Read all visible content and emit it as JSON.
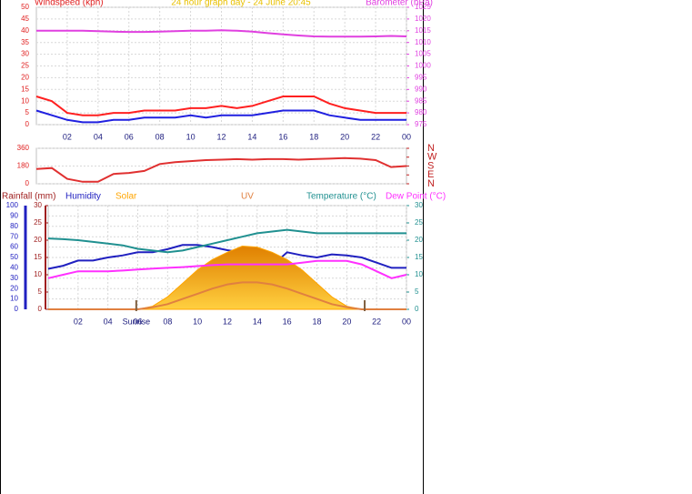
{
  "chart_data": [
    {
      "type": "line",
      "title": "24 hour graph day - 24 June 20:45",
      "ylabel": "Windspeed (kph)",
      "y2label": "Barometer (hPa)",
      "x": [
        0,
        1,
        2,
        3,
        4,
        5,
        6,
        7,
        8,
        9,
        10,
        11,
        12,
        13,
        14,
        15,
        16,
        17,
        18,
        19,
        20,
        21,
        22,
        23,
        24
      ],
      "xlim": [
        0,
        24
      ],
      "xticks": [
        {
          "value": 2,
          "label": "02"
        },
        {
          "value": 4,
          "label": "04"
        },
        {
          "value": 6,
          "label": "06"
        },
        {
          "value": 8,
          "label": "08"
        },
        10,
        12,
        14,
        16,
        18,
        20,
        22,
        {
          "value": 24,
          "label": "00"
        }
      ],
      "ylim": [
        0,
        50
      ],
      "yticks": [
        0,
        5,
        10,
        15,
        20,
        25,
        30,
        35,
        40,
        45,
        50
      ],
      "y2lim": [
        975,
        1025
      ],
      "y2ticks": [
        975,
        980,
        985,
        990,
        995,
        1000,
        1005,
        1010,
        1015,
        1020,
        1025
      ],
      "grid": true,
      "series": [
        {
          "color": "#ff2020",
          "values": [
            12,
            10,
            5,
            4,
            4,
            5,
            5,
            6,
            6,
            6,
            7,
            7,
            8,
            7,
            8,
            10,
            12,
            12,
            12,
            9,
            7,
            6,
            5,
            5,
            5
          ]
        },
        {
          "color": "#2020e0",
          "values": [
            6,
            4,
            2,
            1,
            1,
            2,
            2,
            3,
            3,
            3,
            4,
            3,
            4,
            4,
            4,
            5,
            6,
            6,
            6,
            4,
            3,
            2,
            2,
            2,
            2
          ]
        },
        {
          "color": "#e040e0",
          "axis": "y2",
          "values": [
            1015,
            1015,
            1015,
            1015,
            1014.8,
            1014.6,
            1014.5,
            1014.5,
            1014.6,
            1014.8,
            1015,
            1015,
            1015.2,
            1015,
            1014.6,
            1014,
            1013.5,
            1013,
            1012.6,
            1012.5,
            1012.5,
            1012.5,
            1012.6,
            1012.8,
            1012.6
          ]
        }
      ]
    },
    {
      "type": "line",
      "x": [
        0,
        1,
        2,
        3,
        4,
        5,
        6,
        7,
        8,
        9,
        10,
        11,
        12,
        13,
        14,
        15,
        16,
        17,
        18,
        19,
        20,
        21,
        22,
        23,
        24
      ],
      "xlim": [
        0,
        24
      ],
      "ylim": [
        0,
        360
      ],
      "yticks": [
        0,
        180,
        360
      ],
      "y2lim": [
        0,
        360
      ],
      "y2ticks": [
        {
          "value": 360,
          "label": "N"
        },
        {
          "value": 270,
          "label": "W"
        },
        {
          "value": 180,
          "label": "S"
        },
        {
          "value": 90,
          "label": "E"
        },
        {
          "value": 0,
          "label": "N"
        }
      ],
      "grid": true,
      "series": [
        {
          "color": "#e03030",
          "values": [
            150,
            160,
            50,
            20,
            20,
            100,
            110,
            130,
            200,
            220,
            230,
            240,
            245,
            250,
            245,
            250,
            250,
            245,
            250,
            255,
            260,
            255,
            240,
            170,
            180
          ]
        }
      ]
    },
    {
      "type": "line",
      "y3label": "Rainfall (mm)",
      "x": [
        0,
        1,
        2,
        3,
        4,
        5,
        6,
        7,
        8,
        9,
        10,
        11,
        12,
        13,
        14,
        15,
        16,
        17,
        18,
        19,
        20,
        21,
        22,
        23,
        24
      ],
      "xlim": [
        0,
        24
      ],
      "xticks": [
        {
          "value": 2,
          "label": "02"
        },
        {
          "value": 4,
          "label": "04"
        },
        {
          "value": 6,
          "label": "06"
        },
        {
          "value": 8,
          "label": "08"
        },
        10,
        12,
        14,
        16,
        18,
        20,
        22,
        {
          "value": 24,
          "label": "00"
        }
      ],
      "ylim": [
        0,
        100
      ],
      "yticks": [
        0,
        10,
        20,
        30,
        40,
        50,
        60,
        70,
        80,
        90,
        100
      ],
      "y3lim": [
        0,
        30
      ],
      "y3ticks": [
        0,
        5,
        10,
        15,
        20,
        25,
        30
      ],
      "y2lim": [
        0,
        30
      ],
      "y2ticks": [
        0,
        5,
        10,
        15,
        20,
        25,
        30
      ],
      "grid": true,
      "annotations": [
        {
          "text": "Sunrise",
          "x": 5.9
        }
      ],
      "markers": [
        5.9,
        21.2
      ],
      "series": [
        {
          "name": "Humidity",
          "color": "#2020c0",
          "values": [
            39,
            42,
            47,
            47,
            50,
            52,
            55,
            55,
            58,
            62,
            62,
            60,
            57,
            55,
            50,
            42,
            55,
            52,
            50,
            53,
            52,
            50,
            45,
            40,
            40
          ]
        },
        {
          "name": "Solar",
          "color": "#ffa500",
          "area": true,
          "values": [
            0,
            0,
            0,
            0,
            0,
            0,
            0,
            3,
            12,
            25,
            38,
            48,
            55,
            61,
            60,
            55,
            48,
            38,
            25,
            12,
            3,
            0,
            0,
            0,
            0
          ]
        },
        {
          "name": "UV",
          "color": "#e08040",
          "values": [
            0,
            0,
            0,
            0,
            0,
            0,
            0,
            2,
            5,
            10,
            15,
            20,
            24,
            26,
            26,
            24,
            20,
            15,
            10,
            5,
            2,
            0,
            0,
            0,
            0
          ]
        },
        {
          "name": "Temperature (°C)",
          "color": "#209090",
          "axis": "y2",
          "values": [
            20.5,
            20.3,
            20,
            19.5,
            19,
            18.5,
            17.5,
            17,
            16.5,
            17,
            18,
            19,
            20,
            21,
            22,
            22.5,
            23,
            22.5,
            22,
            22,
            22,
            22,
            22,
            22,
            22
          ]
        },
        {
          "name": "Dew Point (°C)",
          "color": "#ff30ff",
          "axis": "y2",
          "values": [
            9,
            10,
            11,
            11,
            11,
            11.2,
            11.5,
            11.8,
            12,
            12.2,
            12.5,
            12.8,
            13,
            13,
            13,
            13,
            13,
            13.5,
            14,
            14,
            14,
            13,
            11,
            9,
            10
          ]
        }
      ]
    }
  ]
}
